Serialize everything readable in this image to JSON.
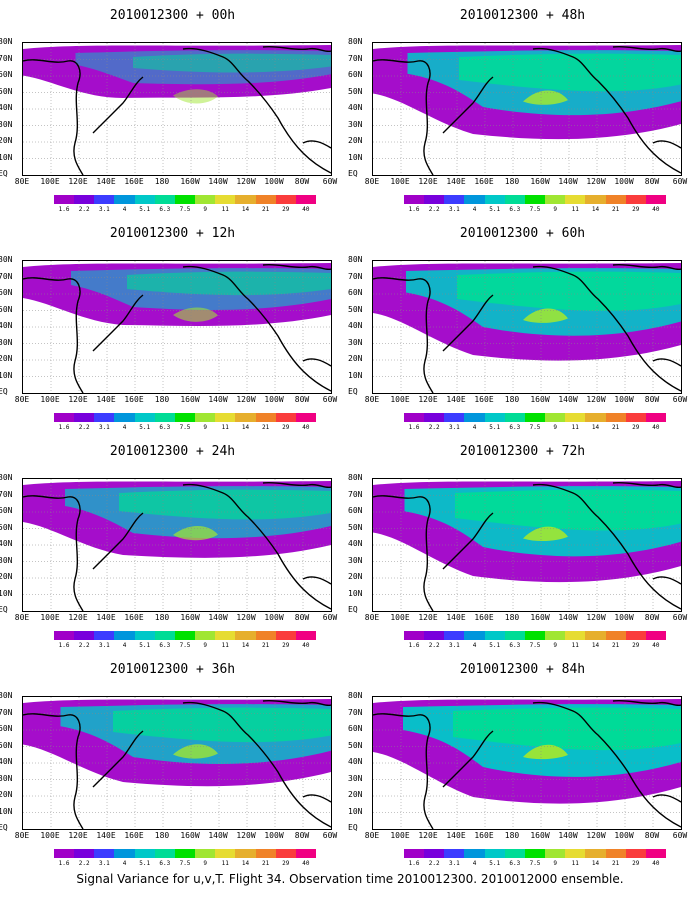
{
  "panels": [
    {
      "title": "2010012300 + 00h"
    },
    {
      "title": "2010012300 + 48h"
    },
    {
      "title": "2010012300 + 12h"
    },
    {
      "title": "2010012300 + 60h"
    },
    {
      "title": "2010012300 + 24h"
    },
    {
      "title": "2010012300 + 72h"
    },
    {
      "title": "2010012300 + 36h"
    },
    {
      "title": "2010012300 + 84h"
    }
  ],
  "lat_labels": [
    "80N",
    "70N",
    "60N",
    "50N",
    "40N",
    "30N",
    "20N",
    "10N",
    "EQ"
  ],
  "lon_labels": [
    "80E",
    "100E",
    "120E",
    "140E",
    "160E",
    "180",
    "160W",
    "140W",
    "120W",
    "100W",
    "80W",
    "60W"
  ],
  "colorbar": {
    "labels": [
      "1.6",
      "2.2",
      "3.1",
      "4",
      "5.1",
      "6.3",
      "7.5",
      "9",
      "11",
      "14",
      "21",
      "29",
      "40"
    ],
    "colors": [
      "#a000c8",
      "#7800dc",
      "#3c3cff",
      "#0096dc",
      "#00c8c8",
      "#00dc96",
      "#00e100",
      "#a0e632",
      "#e6dc32",
      "#e6af2d",
      "#f08228",
      "#fa3c3c",
      "#f00082"
    ]
  },
  "caption": "Signal Variance for u,v,T. Flight 34. Observation time 2010012300. 2010012000 ensemble."
}
